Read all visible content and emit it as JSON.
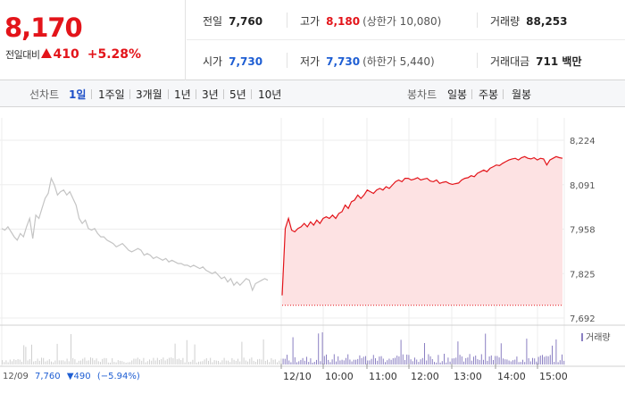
{
  "quote": {
    "price": "8,170",
    "change_label": "전일대비",
    "change_value": "410",
    "change_rate": "+5.28%"
  },
  "stats": {
    "prev_close_label": "전일",
    "prev_close": "7,760",
    "high_label": "고가",
    "high": "8,180",
    "upper_limit": "(상한가 10,080)",
    "volume_label": "거래량",
    "volume": "88,253",
    "open_label": "시가",
    "open": "7,730",
    "low_label": "저가",
    "low": "7,730",
    "lower_limit": "(하한가 5,440)",
    "amount_label": "거래대금",
    "amount": "711 백만"
  },
  "toolbar": {
    "line_chart_label": "선차트",
    "periods": [
      "1일",
      "1주일",
      "3개월",
      "1년",
      "3년",
      "5년",
      "10년"
    ],
    "active_period": "1일",
    "candle_chart_label": "봉차트",
    "candles": [
      "일봉",
      "주봉",
      "월봉"
    ]
  },
  "colors": {
    "up": "#e3141a",
    "down": "#1e5ed3",
    "prev_line": "#c4c4c4",
    "fill": "#fde2e3",
    "volume": "#8a7fc2"
  },
  "chart_data": {
    "type": "line",
    "price_axis": [
      "8,224",
      "8,091",
      "7,958",
      "7,825",
      "7,692"
    ],
    "ylim": [
      7692,
      8224
    ],
    "volume_legend": "거래량",
    "prev_day_info": {
      "date": "12/09",
      "close": "7,760",
      "change": "▼490",
      "rate": "(−5.94%)"
    },
    "x_ticks": [
      "12/10",
      "10:00",
      "11:00",
      "12:00",
      "13:00",
      "14:00",
      "15:00"
    ],
    "baseline": 7730,
    "prev_day_series": [
      7960,
      7955,
      7965,
      7950,
      7935,
      7925,
      7945,
      7935,
      7965,
      7990,
      7930,
      8000,
      7990,
      8020,
      8050,
      8065,
      8110,
      8090,
      8060,
      8070,
      8075,
      8060,
      8070,
      8050,
      8030,
      7990,
      7975,
      7985,
      7960,
      7955,
      7960,
      7945,
      7935,
      7935,
      7925,
      7920,
      7915,
      7905,
      7910,
      7915,
      7905,
      7895,
      7890,
      7895,
      7900,
      7895,
      7880,
      7885,
      7880,
      7870,
      7875,
      7870,
      7865,
      7870,
      7860,
      7865,
      7860,
      7855,
      7855,
      7850,
      7850,
      7845,
      7850,
      7845,
      7840,
      7845,
      7835,
      7830,
      7825,
      7830,
      7820,
      7810,
      7815,
      7800,
      7810,
      7790,
      7800,
      7790,
      7800,
      7810,
      7805,
      7775,
      7795,
      7800,
      7805,
      7810,
      7805
    ],
    "today_series": [
      7760,
      7960,
      7990,
      7955,
      7950,
      7960,
      7965,
      7975,
      7965,
      7980,
      7970,
      7985,
      7975,
      7990,
      7995,
      7990,
      8000,
      7990,
      8005,
      8010,
      8030,
      8020,
      8040,
      8045,
      8060,
      8050,
      8060,
      8075,
      8070,
      8065,
      8075,
      8080,
      8075,
      8085,
      8080,
      8090,
      8100,
      8105,
      8100,
      8110,
      8110,
      8105,
      8108,
      8112,
      8105,
      8108,
      8110,
      8102,
      8100,
      8105,
      8095,
      8098,
      8100,
      8095,
      8092,
      8094,
      8096,
      8105,
      8110,
      8112,
      8118,
      8115,
      8125,
      8130,
      8135,
      8130,
      8140,
      8145,
      8150,
      8148,
      8155,
      8160,
      8165,
      8168,
      8170,
      8165,
      8172,
      8175,
      8170,
      8168,
      8172,
      8165,
      8170,
      8168,
      8150,
      8165,
      8170,
      8175,
      8172,
      8170
    ]
  }
}
